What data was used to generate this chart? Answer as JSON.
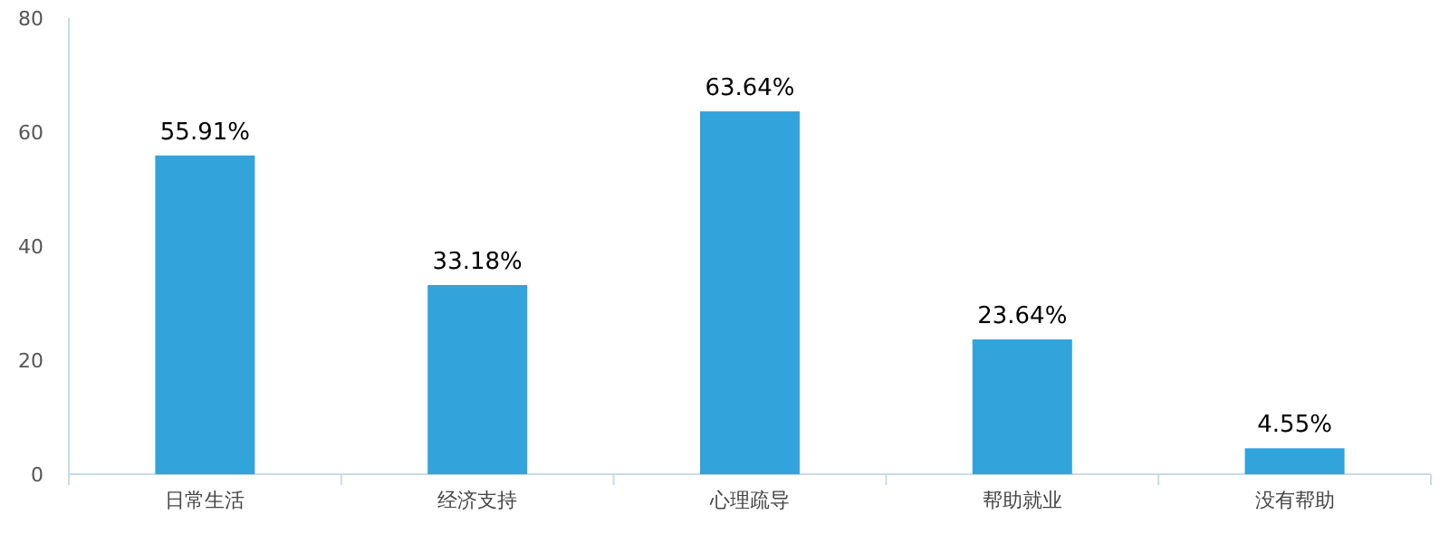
{
  "chart_data": {
    "type": "bar",
    "categories": [
      "日常生活",
      "经济支持",
      "心理疏导",
      "帮助就业",
      "没有帮助"
    ],
    "values": [
      55.91,
      33.18,
      63.64,
      23.64,
      4.55
    ],
    "value_labels": [
      "55.91%",
      "33.18%",
      "63.64%",
      "23.64%",
      "4.55%"
    ],
    "color": "#33a3dc",
    "ylim": [
      0,
      80
    ],
    "yticks": [
      0,
      20,
      40,
      60,
      80
    ],
    "grid": false
  }
}
